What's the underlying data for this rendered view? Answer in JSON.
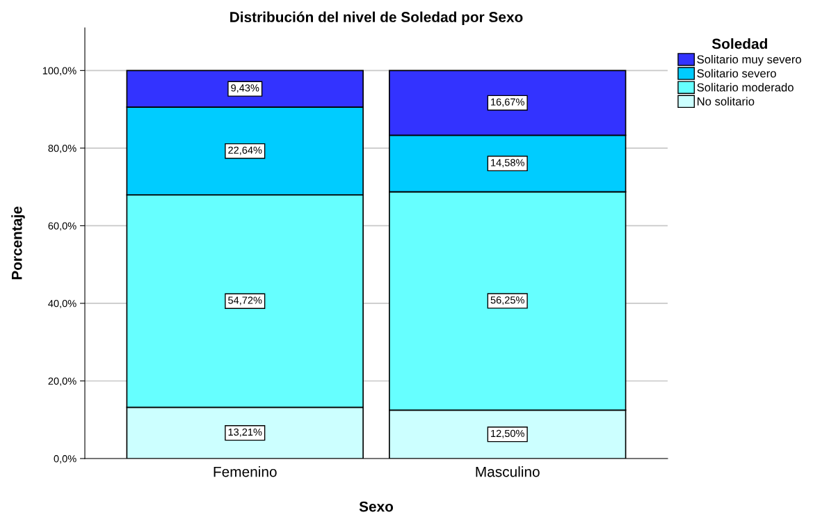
{
  "chart_data": {
    "type": "bar",
    "stacked": true,
    "title": "Distribución del nivel de Soledad por Sexo",
    "xlabel": "Sexo",
    "ylabel": "Porcentaje",
    "legend_title": "Soledad",
    "legend": "top right",
    "grid": "y",
    "categories": [
      "Femenino",
      "Masculino"
    ],
    "ylim": [
      0,
      111
    ],
    "yticks": [
      {
        "value": 0,
        "label": "0,0%"
      },
      {
        "value": 20,
        "label": "20,0%"
      },
      {
        "value": 40,
        "label": "40,0%"
      },
      {
        "value": 60,
        "label": "60,0%"
      },
      {
        "value": 80,
        "label": "80,0%"
      },
      {
        "value": 100,
        "label": "100,0%"
      }
    ],
    "series": [
      {
        "name": "No solitario",
        "color": "#ccffff",
        "values": [
          13.21,
          12.5
        ],
        "value_labels": [
          "13,21%",
          "12,50%"
        ]
      },
      {
        "name": "Solitario moderado",
        "color": "#66ffff",
        "values": [
          54.72,
          56.25
        ],
        "value_labels": [
          "54,72%",
          "56,25%"
        ]
      },
      {
        "name": "Solitario severo",
        "color": "#00ccff",
        "values": [
          22.64,
          14.58
        ],
        "value_labels": [
          "22,64%",
          "14,58%"
        ]
      },
      {
        "name": "Solitario muy severo",
        "color": "#3333ff",
        "values": [
          9.43,
          16.67
        ],
        "value_labels": [
          "9,43%",
          "16,67%"
        ]
      }
    ]
  }
}
